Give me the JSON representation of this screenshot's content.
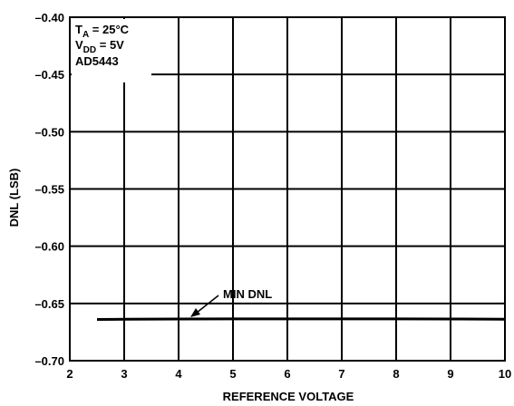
{
  "chart_data": {
    "type": "line",
    "xlabel": "REFERENCE VOLTAGE",
    "ylabel": "DNL (LSB)",
    "xlim": [
      2,
      10
    ],
    "ylim": [
      -0.7,
      -0.4
    ],
    "x_ticks": [
      2,
      3,
      4,
      5,
      6,
      7,
      8,
      9,
      10
    ],
    "x_tick_labels": [
      "2",
      "3",
      "4",
      "5",
      "6",
      "7",
      "8",
      "9",
      "10"
    ],
    "y_ticks": [
      -0.4,
      -0.45,
      -0.5,
      -0.55,
      -0.6,
      -0.65,
      -0.7
    ],
    "y_tick_labels": [
      "–0.40",
      "–0.45",
      "–0.50",
      "–0.55",
      "–0.60",
      "–0.65",
      "–0.70"
    ],
    "grid": true,
    "conditions": {
      "ta_main": "T",
      "ta_sub": "A",
      "ta_rest": " = 25°C",
      "vdd_main": "V",
      "vdd_sub": "DD",
      "vdd_rest": " = 5V",
      "part": "AD5443"
    },
    "series": [
      {
        "name": "MIN DNL",
        "color": "#000000",
        "x": [
          2.5,
          3,
          4,
          5,
          6,
          7,
          8,
          9,
          10
        ],
        "y": [
          -0.664,
          -0.6638,
          -0.6636,
          -0.6635,
          -0.6635,
          -0.6635,
          -0.6635,
          -0.6636,
          -0.6638
        ]
      }
    ],
    "annotation": {
      "text": "MIN DNL",
      "x": 4.2,
      "y": -0.664
    }
  }
}
